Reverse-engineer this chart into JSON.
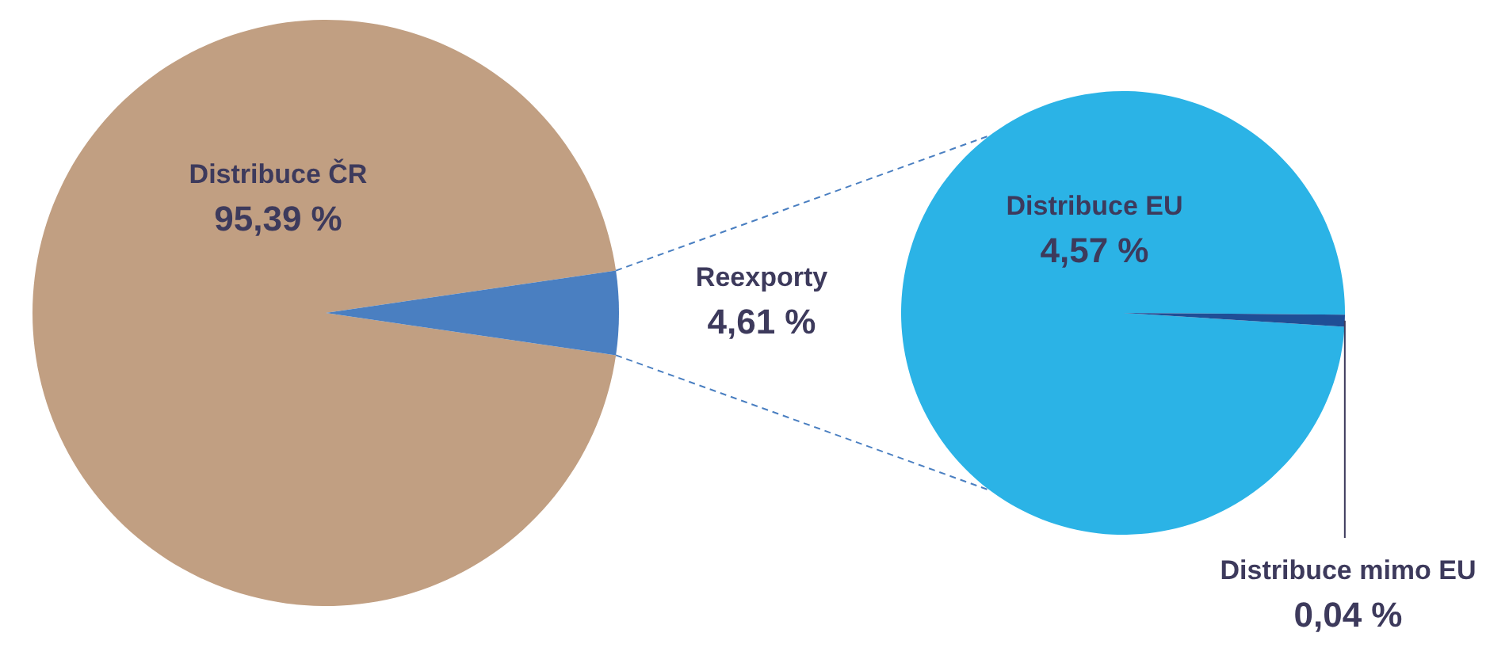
{
  "chart_data": [
    {
      "type": "pie",
      "categories": [
        "Distribuce ČR",
        "Reexporty"
      ],
      "values": [
        95.39,
        4.61
      ],
      "colors": [
        "#c19f82",
        "#4a7fc1"
      ],
      "value_labels": [
        "95,39 %",
        "4,61 %"
      ]
    },
    {
      "type": "pie",
      "categories": [
        "Distribuce EU",
        "Distribuce mimo EU"
      ],
      "values": [
        4.57,
        0.04
      ],
      "colors": [
        "#2bb3e6",
        "#1f4e96"
      ],
      "value_labels": [
        "4,57 %",
        "0,04 %"
      ]
    }
  ]
}
